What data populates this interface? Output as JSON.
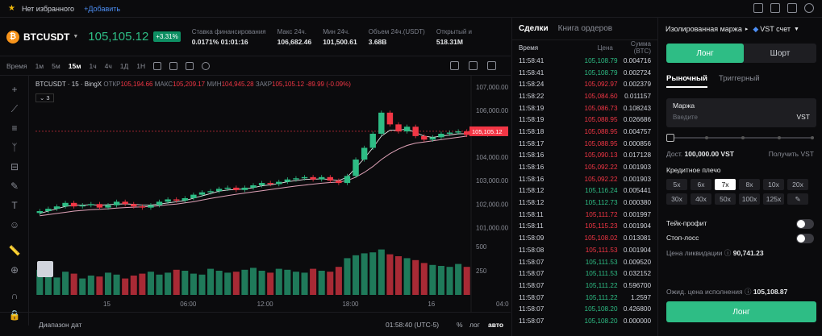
{
  "topbar": {
    "favorites": "Нет избранного",
    "add": "+Добавить"
  },
  "ticker": {
    "symbol": "BTCUSDT",
    "last_price": "105,105.12",
    "change": "+3.31%",
    "stats": [
      {
        "label": "Ставка финансирования",
        "value": "0.0171% 01:01:16"
      },
      {
        "label": "Макс 24ч.",
        "value": "106,682.46"
      },
      {
        "label": "Мин 24ч.",
        "value": "101,500.61"
      },
      {
        "label": "Объем 24ч.(USDT)",
        "value": "3.68B"
      },
      {
        "label": "Открытый и",
        "value": "518.31M"
      }
    ]
  },
  "timeframes": {
    "label": "Время",
    "items": [
      "1м",
      "5м",
      "15м",
      "1ч",
      "4ч",
      "1Д",
      "1Н"
    ],
    "active": "15м"
  },
  "legend": {
    "title": "BTCUSDT · 15 · BingX",
    "open_label": "ОТКР",
    "open": "105,194.66",
    "high_label": "МАКС",
    "high": "105,209.17",
    "low_label": "МИН",
    "low": "104,945.28",
    "close_label": "ЗАКР",
    "close": "105,105.12",
    "change": "-89.99 (-0.09%)",
    "ma_count": "3"
  },
  "bottombar": {
    "range": "Диапазон дат",
    "clock": "01:58:40 (UTC-5)",
    "pct": "%",
    "log": "лог",
    "auto": "авто"
  },
  "chart_data": {
    "type": "candlestick",
    "ylim": [
      100600,
      107200
    ],
    "y_ticks": [
      "107,000.00",
      "106,000.00",
      "105,000.00",
      "104,000.00",
      "103,000.00",
      "102,000.00",
      "101,000.00"
    ],
    "y_tick_values": [
      107000,
      106000,
      105000,
      104000,
      103000,
      102000,
      101000
    ],
    "x_ticks": [
      "15",
      "06:00",
      "12:00",
      "18:00",
      "16",
      "04:0"
    ],
    "x_tick_index": [
      8,
      17,
      26,
      36,
      46,
      54
    ],
    "price_label": "105,105.12",
    "price_value": 105105.12,
    "volume_ticks": [
      "500",
      "250"
    ],
    "volume_tick_values": [
      500,
      250
    ],
    "close_series": [
      101700,
      101800,
      101900,
      102050,
      101900,
      101950,
      102000,
      101850,
      101950,
      102100,
      102000,
      101900,
      101850,
      101950,
      102100,
      102200,
      102150,
      102250,
      102400,
      102500,
      102550,
      102650,
      102700,
      102600,
      102700,
      102800,
      102900,
      102850,
      102950,
      103050,
      103100,
      103150,
      103050,
      103150,
      103000,
      102900,
      103200,
      103900,
      104400,
      105000,
      105900,
      105400,
      105100,
      105300,
      104900,
      104750,
      104850,
      105000,
      105050,
      105100,
      104950
    ],
    "volume": [
      260,
      200,
      180,
      240,
      220,
      170,
      200,
      190,
      230,
      210,
      170,
      200,
      220,
      240,
      210,
      230,
      260,
      250,
      220,
      210,
      270,
      250,
      230,
      240,
      260,
      280,
      250,
      230,
      270,
      260,
      240,
      230,
      270,
      250,
      240,
      290,
      380,
      410,
      430,
      440,
      470,
      420,
      400,
      380,
      360,
      330,
      310,
      300,
      290,
      320,
      290
    ],
    "ma_fast": [
      101600,
      101700,
      101800,
      101900,
      101950,
      101950,
      101980,
      101950,
      101970,
      102000,
      102010,
      101990,
      101960,
      101960,
      102000,
      102050,
      102100,
      102150,
      102250,
      102350,
      102450,
      102550,
      102600,
      102620,
      102650,
      102700,
      102780,
      102820,
      102880,
      102950,
      103000,
      103050,
      103060,
      103080,
      103050,
      103000,
      103150,
      103550,
      103950,
      104400,
      104900,
      105150,
      105150,
      105200,
      105050,
      104900,
      104850,
      104900,
      104950,
      105000,
      105000
    ],
    "ma_slow": [
      101500,
      101550,
      101600,
      101650,
      101700,
      101730,
      101760,
      101780,
      101800,
      101830,
      101850,
      101870,
      101880,
      101900,
      101930,
      101970,
      102000,
      102050,
      102100,
      102170,
      102240,
      102300,
      102360,
      102420,
      102470,
      102520,
      102570,
      102620,
      102670,
      102720,
      102770,
      102810,
      102850,
      102890,
      102920,
      102940,
      103000,
      103150,
      103350,
      103600,
      103900,
      104150,
      104350,
      104500,
      104600,
      104650,
      104700,
      104750,
      104800,
      104850,
      104900
    ]
  },
  "trades": {
    "tabs": [
      "Сделки",
      "Книга ордеров"
    ],
    "headers": [
      "Время",
      "Цена",
      "Сумма (BTC)"
    ],
    "rows": [
      {
        "time": "11:58:41",
        "price": "105,108.79",
        "amount": "0.004716",
        "side": "up"
      },
      {
        "time": "11:58:41",
        "price": "105,108.79",
        "amount": "0.002724",
        "side": "up"
      },
      {
        "time": "11:58:24",
        "price": "105,092.97",
        "amount": "0.002379",
        "side": "dn"
      },
      {
        "time": "11:58:22",
        "price": "105,084.60",
        "amount": "0.011157",
        "side": "dn"
      },
      {
        "time": "11:58:19",
        "price": "105,086.73",
        "amount": "0.108243",
        "side": "dn"
      },
      {
        "time": "11:58:19",
        "price": "105,088.95",
        "amount": "0.026686",
        "side": "dn"
      },
      {
        "time": "11:58:18",
        "price": "105,088.95",
        "amount": "0.004757",
        "side": "dn"
      },
      {
        "time": "11:58:17",
        "price": "105,088.95",
        "amount": "0.000856",
        "side": "dn"
      },
      {
        "time": "11:58:16",
        "price": "105,090.13",
        "amount": "0.017128",
        "side": "dn"
      },
      {
        "time": "11:58:16",
        "price": "105,092.22",
        "amount": "0.001903",
        "side": "dn"
      },
      {
        "time": "11:58:16",
        "price": "105,092.22",
        "amount": "0.001903",
        "side": "dn"
      },
      {
        "time": "11:58:12",
        "price": "105,116.24",
        "amount": "0.005441",
        "side": "up"
      },
      {
        "time": "11:58:12",
        "price": "105,112.73",
        "amount": "0.000380",
        "side": "up"
      },
      {
        "time": "11:58:11",
        "price": "105,111.72",
        "amount": "0.001997",
        "side": "dn"
      },
      {
        "time": "11:58:11",
        "price": "105,115.23",
        "amount": "0.001904",
        "side": "dn"
      },
      {
        "time": "11:58:09",
        "price": "105,108.02",
        "amount": "0.013081",
        "side": "dn"
      },
      {
        "time": "11:58:08",
        "price": "105,111.53",
        "amount": "0.001904",
        "side": "dn"
      },
      {
        "time": "11:58:07",
        "price": "105,111.53",
        "amount": "0.009520",
        "side": "up"
      },
      {
        "time": "11:58:07",
        "price": "105,111.53",
        "amount": "0.032152",
        "side": "up"
      },
      {
        "time": "11:58:07",
        "price": "105,111.22",
        "amount": "0.596700",
        "side": "up"
      },
      {
        "time": "11:58:07",
        "price": "105,111.22",
        "amount": "1.2597",
        "side": "up"
      },
      {
        "time": "11:58:07",
        "price": "105,108.20",
        "amount": "0.426800",
        "side": "up"
      },
      {
        "time": "11:58:07",
        "price": "105,108.20",
        "amount": "0.000000",
        "side": "up"
      }
    ]
  },
  "order": {
    "mode": "Изолированная маржа",
    "account": "VST счет",
    "long": "Лонг",
    "short": "Шорт",
    "tabs": [
      "Рыночный",
      "Триггерный"
    ],
    "margin_label": "Маржа",
    "margin_placeholder": "Введите",
    "currency": "VST",
    "available_label": "Дост.",
    "available": "100,000.00 VST",
    "get_vst": "Получить VST",
    "leverage_label": "Кредитное плечо",
    "leverage": [
      "5x",
      "6x",
      "7x",
      "8x",
      "10x",
      "20x",
      "30x",
      "40x",
      "50x",
      "100x",
      "125x"
    ],
    "leverage_active": "7x",
    "take_profit": "Тейк-профит",
    "stop_loss": "Стоп-лосс",
    "liq_label": "Цена ликвидации",
    "liq": "90,741.23",
    "exp_label": "Ожид. цена исполнения",
    "exp": "105,108.87",
    "submit": "Лонг"
  }
}
